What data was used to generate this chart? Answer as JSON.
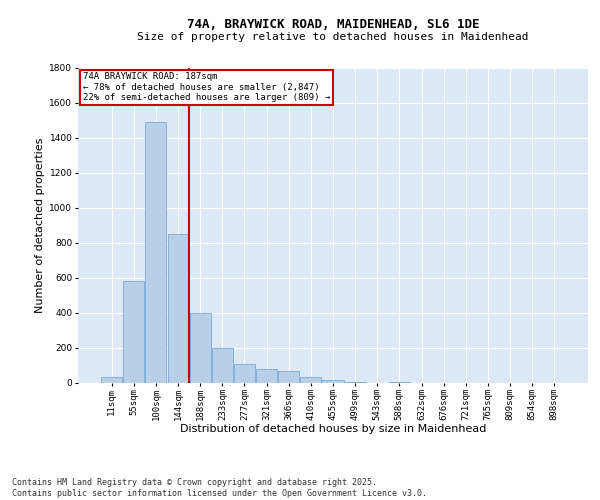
{
  "title_line1": "74A, BRAYWICK ROAD, MAIDENHEAD, SL6 1DE",
  "title_line2": "Size of property relative to detached houses in Maidenhead",
  "xlabel": "Distribution of detached houses by size in Maidenhead",
  "ylabel": "Number of detached properties",
  "bar_color": "#b8cfe8",
  "bar_edge_color": "#6a9fd0",
  "background_color": "#dce8f5",
  "grid_color": "#ffffff",
  "annotation_box_color": "#cc0000",
  "vline_color": "#cc0000",
  "annotation_text": "74A BRAYWICK ROAD: 187sqm\n← 78% of detached houses are smaller (2,847)\n22% of semi-detached houses are larger (809) →",
  "footer_line1": "Contains HM Land Registry data © Crown copyright and database right 2025.",
  "footer_line2": "Contains public sector information licensed under the Open Government Licence v3.0.",
  "categories": [
    "11sqm",
    "55sqm",
    "100sqm",
    "144sqm",
    "188sqm",
    "233sqm",
    "277sqm",
    "321sqm",
    "366sqm",
    "410sqm",
    "455sqm",
    "499sqm",
    "543sqm",
    "588sqm",
    "632sqm",
    "676sqm",
    "721sqm",
    "765sqm",
    "809sqm",
    "854sqm",
    "898sqm"
  ],
  "values": [
    30,
    580,
    1490,
    850,
    400,
    200,
    105,
    80,
    65,
    30,
    15,
    5,
    0,
    5,
    0,
    0,
    0,
    0,
    0,
    0,
    0
  ],
  "ylim": [
    0,
    1800
  ],
  "yticks": [
    0,
    200,
    400,
    600,
    800,
    1000,
    1200,
    1400,
    1600,
    1800
  ],
  "vline_x_idx": 3.5,
  "title_fontsize": 9,
  "subtitle_fontsize": 8,
  "tick_fontsize": 6.5,
  "label_fontsize": 8,
  "footer_fontsize": 6
}
